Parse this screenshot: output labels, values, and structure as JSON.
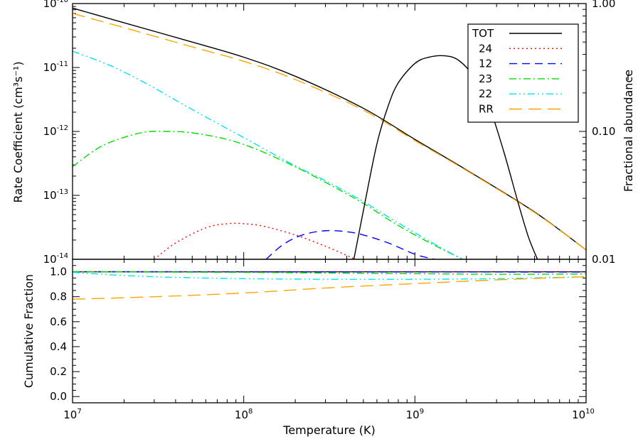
{
  "chart_data": [
    {
      "panel": "top",
      "type": "line",
      "xscale": "log",
      "yscale": "log",
      "xlim": [
        10000000.0,
        10000000000.0
      ],
      "ylim": [
        1e-14,
        1e-10
      ],
      "ylabel": "Rate Coefficient (cm³s⁻¹)",
      "y_ticklabels": [
        {
          "value": 1e-14,
          "base": "10",
          "exp": "-14"
        },
        {
          "value": 1e-13,
          "base": "10",
          "exp": "-13"
        },
        {
          "value": 1e-12,
          "base": "10",
          "exp": "-12"
        },
        {
          "value": 1e-11,
          "base": "10",
          "exp": "-11"
        },
        {
          "value": 1e-10,
          "base": "10",
          "exp": "-10"
        }
      ],
      "right_axis": {
        "label": "Fractional abundance",
        "scale": "log",
        "lim": [
          0.01,
          1.0
        ],
        "ticklabels": [
          {
            "value": 0.01,
            "text": "0.01"
          },
          {
            "value": 0.1,
            "text": "0.10"
          },
          {
            "value": 1.0,
            "text": "1.00"
          }
        ]
      },
      "legend": "top-right",
      "series": [
        {
          "name": "TOT",
          "color": "#000000",
          "dash": "solid",
          "x": [
            10000000.0,
            20000000.0,
            50000000.0,
            100000000.0,
            200000000.0,
            500000000.0,
            1000000000.0,
            2000000000.0,
            5000000000.0,
            10000000000.0
          ],
          "y": [
            8.5e-11,
            5e-11,
            2.5e-11,
            1.45e-11,
            7.3e-12,
            2.3e-12,
            7.5e-13,
            2.5e-13,
            5.5e-14,
            1.4e-14
          ]
        },
        {
          "name": "24",
          "color": "#ff0000",
          "dash": "dotted",
          "x": [
            30000000.0,
            40000000.0,
            60000000.0,
            80000000.0,
            100000000.0,
            130000000.0,
            200000000.0,
            300000000.0,
            450000000.0
          ],
          "y": [
            1e-14,
            1.8e-14,
            3.1e-14,
            3.6e-14,
            3.6e-14,
            3.3e-14,
            2.4e-14,
            1.6e-14,
            1e-14
          ]
        },
        {
          "name": "12",
          "color": "#0000ff",
          "dash": "dashed",
          "x": [
            135000000.0,
            170000000.0,
            220000000.0,
            300000000.0,
            400000000.0,
            500000000.0,
            700000000.0,
            1000000000.0,
            1300000000.0
          ],
          "y": [
            1e-14,
            1.7e-14,
            2.4e-14,
            2.8e-14,
            2.7e-14,
            2.4e-14,
            1.8e-14,
            1.2e-14,
            1e-14
          ]
        },
        {
          "name": "23",
          "color": "#00dd00",
          "dash": "dashdot",
          "x": [
            10000000.0,
            15000000.0,
            25000000.0,
            36000000.0,
            50000000.0,
            80000000.0,
            120000000.0,
            200000000.0,
            300000000.0,
            500000000.0,
            700000000.0,
            1000000000.0,
            1400000000.0,
            1900000000.0
          ],
          "y": [
            2.8e-13,
            6e-13,
            9.5e-13,
            1e-12,
            9.5e-13,
            7.5e-13,
            5.2e-13,
            2.8e-13,
            1.6e-13,
            7.5e-14,
            4.2e-14,
            2.4e-14,
            1.5e-14,
            1e-14
          ]
        },
        {
          "name": "22",
          "color": "#00e5ee",
          "dash": "dashdotdot",
          "x": [
            10000000.0,
            15000000.0,
            20000000.0,
            30000000.0,
            50000000.0,
            100000000.0,
            200000000.0,
            300000000.0,
            500000000.0,
            700000000.0,
            1000000000.0,
            1500000000.0,
            1900000000.0
          ],
          "y": [
            1.8e-11,
            1.2e-11,
            8.5e-12,
            4.8e-12,
            2.2e-12,
            8e-13,
            2.9e-13,
            1.7e-13,
            8e-14,
            4.6e-14,
            2.6e-14,
            1.4e-14,
            1e-14
          ]
        },
        {
          "name": "RR",
          "color": "#ffa500",
          "dash": "longdash",
          "x": [
            10000000.0,
            20000000.0,
            50000000.0,
            100000000.0,
            200000000.0,
            500000000.0,
            1000000000.0,
            2000000000.0,
            5000000000.0,
            10000000000.0
          ],
          "y": [
            7e-11,
            4.2e-11,
            2.1e-11,
            1.25e-11,
            6.5e-12,
            2.15e-12,
            7.2e-13,
            2.45e-13,
            5.4e-14,
            1.4e-14
          ]
        }
      ],
      "abundance_curve": {
        "color": "#000000",
        "x": [
          440000000.0,
          500000000.0,
          600000000.0,
          700000000.0,
          800000000.0,
          1000000000.0,
          1200000000.0,
          1500000000.0,
          1800000000.0,
          2200000000.0,
          2700000000.0,
          3300000000.0,
          4000000000.0,
          4600000000.0,
          5200000000.0
        ],
        "y": [
          0.01,
          0.024,
          0.08,
          0.16,
          0.24,
          0.34,
          0.38,
          0.39,
          0.36,
          0.27,
          0.16,
          0.07,
          0.028,
          0.015,
          0.01
        ]
      }
    },
    {
      "panel": "bottom",
      "type": "line",
      "xscale": "log",
      "yscale": "linear",
      "xlim": [
        10000000.0,
        10000000000.0
      ],
      "ylim": [
        -0.05,
        1.1
      ],
      "xlabel": "Temperature (K)",
      "ylabel": "Cumulative Fraction",
      "x_ticklabels": [
        {
          "value": 10000000.0,
          "base": "10",
          "exp": "7"
        },
        {
          "value": 100000000.0,
          "base": "10",
          "exp": "8"
        },
        {
          "value": 1000000000.0,
          "base": "10",
          "exp": "9"
        },
        {
          "value": 10000000000.0,
          "base": "10",
          "exp": "10"
        }
      ],
      "y_ticklabels": [
        "0.0",
        "0.2",
        "0.4",
        "0.6",
        "0.8",
        "1.0"
      ],
      "series": [
        {
          "ref": "TOT",
          "color": "#000000",
          "dash": "solid",
          "x": [
            10000000.0,
            10000000000.0
          ],
          "y": [
            1.0,
            1.0
          ]
        },
        {
          "ref": "24",
          "color": "#ff0000",
          "dash": "dotted",
          "x": [
            10000000.0,
            10000000000.0
          ],
          "y": [
            1.0,
            1.0
          ]
        },
        {
          "ref": "12",
          "color": "#0000ff",
          "dash": "dashed",
          "x": [
            10000000.0,
            10000000000.0
          ],
          "y": [
            1.0,
            0.998
          ]
        },
        {
          "ref": "23",
          "color": "#00dd00",
          "dash": "dashdot",
          "x": [
            10000000.0,
            30000000.0,
            100000000.0,
            300000000.0,
            1000000000.0,
            3000000000.0,
            10000000000.0
          ],
          "y": [
            1.0,
            0.998,
            0.995,
            0.99,
            0.985,
            0.98,
            0.982
          ]
        },
        {
          "ref": "22",
          "color": "#00e5ee",
          "dash": "dashdotdot",
          "x": [
            10000000.0,
            20000000.0,
            40000000.0,
            100000000.0,
            300000000.0,
            1000000000.0,
            3000000000.0,
            10000000000.0
          ],
          "y": [
            0.995,
            0.97,
            0.955,
            0.945,
            0.94,
            0.94,
            0.945,
            0.96
          ]
        },
        {
          "ref": "RR",
          "color": "#ffa500",
          "dash": "longdash",
          "x": [
            10000000.0,
            30000000.0,
            100000000.0,
            300000000.0,
            1000000000.0,
            3000000000.0,
            10000000000.0
          ],
          "y": [
            0.78,
            0.8,
            0.83,
            0.87,
            0.905,
            0.935,
            0.96
          ]
        }
      ]
    }
  ]
}
